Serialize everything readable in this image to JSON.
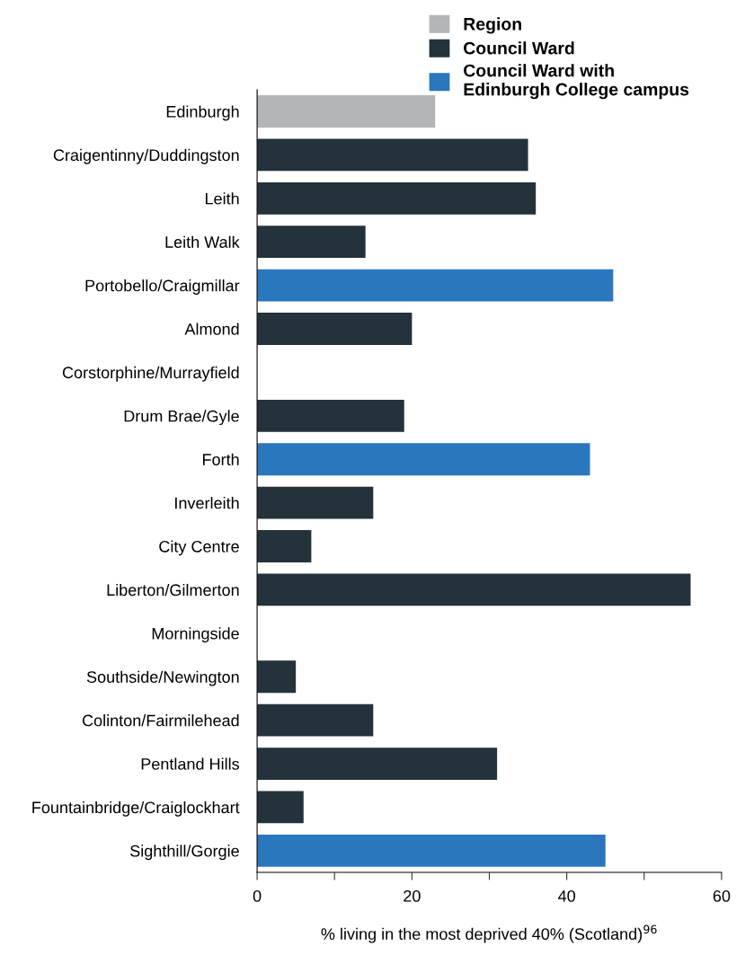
{
  "chart_data": {
    "type": "bar",
    "orientation": "horizontal",
    "xlabel": "% living in the most deprived 40% (Scotland)$^{96}$",
    "categories": [
      "Edinburgh",
      "Craigentinny/Duddingston",
      "Leith",
      "Leith Walk",
      "Portobello/Craigmillar",
      "Almond",
      "Corstorphine/Murrayfield",
      "Drum Brae/Gyle",
      "Forth",
      "Inverleith",
      "City Centre",
      "Liberton/Gilmerton",
      "Morningside",
      "Southside/Newington",
      "Colinton/Fairmilehead",
      "Pentland Hills",
      "Fountainbridge/Craiglockhart",
      "Sighthill/Gorgie"
    ],
    "series": [
      {
        "name": "Region",
        "color": "#b3b5b8",
        "values": [
          23,
          null,
          null,
          null,
          null,
          null,
          null,
          null,
          null,
          null,
          null,
          null,
          null,
          null,
          null,
          null,
          null,
          null
        ]
      },
      {
        "name": "Council Ward",
        "color": "#23323b",
        "values": [
          null,
          35,
          36,
          14,
          null,
          20,
          0,
          19,
          null,
          15,
          7,
          56,
          0,
          5,
          15,
          31,
          6,
          null
        ]
      },
      {
        "name": "Council Ward with\nEdinburgh College campus",
        "color": "#2a77bd",
        "values": [
          null,
          null,
          null,
          null,
          46,
          null,
          null,
          null,
          43,
          null,
          null,
          null,
          null,
          null,
          null,
          null,
          null,
          45
        ]
      }
    ],
    "xlim": [
      0,
      60
    ],
    "xticks": [
      0,
      {
        "value": 10,
        "label": null
      },
      20,
      {
        "value": 30,
        "label": null
      },
      40,
      {
        "value": 50,
        "label": null
      },
      60
    ],
    "legend": "top right",
    "grid": false
  }
}
